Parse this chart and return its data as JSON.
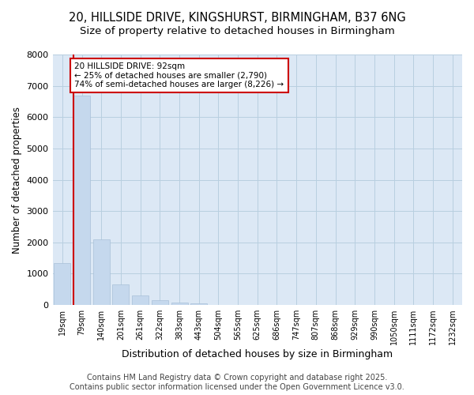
{
  "title_line1": "20, HILLSIDE DRIVE, KINGSHURST, BIRMINGHAM, B37 6NG",
  "title_line2": "Size of property relative to detached houses in Birmingham",
  "xlabel": "Distribution of detached houses by size in Birmingham",
  "ylabel": "Number of detached properties",
  "categories": [
    "19sqm",
    "79sqm",
    "140sqm",
    "201sqm",
    "261sqm",
    "322sqm",
    "383sqm",
    "443sqm",
    "504sqm",
    "565sqm",
    "625sqm",
    "686sqm",
    "747sqm",
    "807sqm",
    "868sqm",
    "929sqm",
    "990sqm",
    "1050sqm",
    "1111sqm",
    "1172sqm",
    "1232sqm"
  ],
  "values": [
    1350,
    6700,
    2100,
    650,
    300,
    150,
    80,
    40,
    5,
    0,
    0,
    0,
    0,
    0,
    0,
    0,
    0,
    0,
    0,
    0,
    0
  ],
  "bar_color": "#c5d8ed",
  "bar_edgecolor": "#a8c0d8",
  "vline_color": "#cc0000",
  "ylim": [
    0,
    8000
  ],
  "yticks": [
    0,
    1000,
    2000,
    3000,
    4000,
    5000,
    6000,
    7000,
    8000
  ],
  "annotation_text": "20 HILLSIDE DRIVE: 92sqm\n← 25% of detached houses are smaller (2,790)\n74% of semi-detached houses are larger (8,226) →",
  "annotation_box_facecolor": "#ffffff",
  "annotation_border_color": "#cc0000",
  "footer_line1": "Contains HM Land Registry data © Crown copyright and database right 2025.",
  "footer_line2": "Contains public sector information licensed under the Open Government Licence v3.0.",
  "bg_color": "#ffffff",
  "plot_bg_color": "#dce8f5",
  "grid_color": "#b8cfe0",
  "title_fontsize": 10.5,
  "subtitle_fontsize": 9.5,
  "tick_fontsize": 7,
  "ylabel_fontsize": 8.5,
  "xlabel_fontsize": 9,
  "footer_fontsize": 7
}
